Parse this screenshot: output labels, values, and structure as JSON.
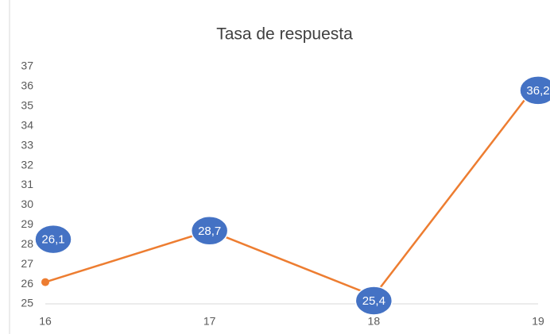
{
  "chart_data": {
    "type": "line",
    "title": "Tasa de respuesta",
    "categories": [
      "16",
      "17",
      "18",
      "19"
    ],
    "values": [
      26.1,
      28.7,
      25.4,
      36.2
    ],
    "value_labels": [
      "26,1",
      "28,7",
      "25,4",
      "36,2"
    ],
    "color": "#ed7d31",
    "label_color": "#4472c4",
    "ylim": [
      25,
      37
    ],
    "yticks": [
      25,
      26,
      27,
      28,
      29,
      30,
      31,
      32,
      33,
      34,
      35,
      36,
      37
    ],
    "grid": false
  }
}
